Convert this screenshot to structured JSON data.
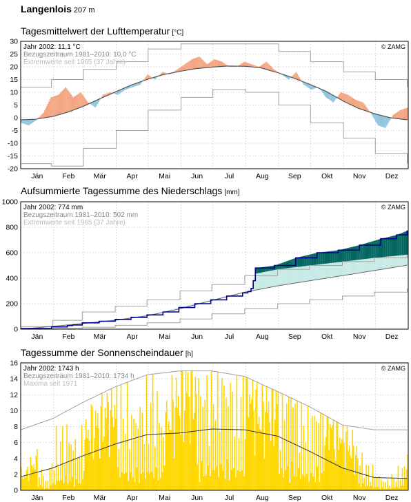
{
  "station": {
    "name": "Langenlois",
    "elevation": "207 m"
  },
  "copyright": "© ZAMG",
  "months": [
    "Jän",
    "Feb",
    "Mär",
    "Apr",
    "Mai",
    "Jun",
    "Jul",
    "Aug",
    "Sep",
    "Okt",
    "Nov",
    "Dez"
  ],
  "colors": {
    "temp_warm": "#f4a582",
    "temp_record_warm": "#b2182b",
    "temp_cold": "#92c5de",
    "temp_record_cold": "#2166ac",
    "temp_mean": "#555555",
    "extreme": "#a0a0a0",
    "precip_year": "#00008b",
    "precip_surplus": "#00665e",
    "precip_deficit": "#c7eae5",
    "sun_bar": "#ffd700",
    "sun_mean": "#333333",
    "sun_max": "#a0a0a0",
    "grid": "#d3d3d3",
    "frame": "#000000",
    "legend_grey": "#888888",
    "legend_light": "#bbbbbb"
  },
  "charts": [
    {
      "id": "temperature",
      "title": "Tagesmittelwert der Lufttemperatur",
      "unit": "[°C]",
      "legend": [
        "Jahr 2002: 11,1 °C",
        "Bezugszeitraum 1981–2010: 10,0 °C",
        "Extremwerte seit 1965 (37 Jahre)"
      ],
      "yticks": [
        "30",
        "25",
        "20",
        "15",
        "10",
        "5",
        "0",
        "-5",
        "-10",
        "-15",
        "-20"
      ]
    },
    {
      "id": "precipitation",
      "title": "Aufsummierte Tagessumme des Niederschlags",
      "unit": "[mm]",
      "legend": [
        "Jahr 2002: 774 mm",
        "Bezugszeitraum 1981–2010: 502 mm",
        "Extremwerte seit 1965 (37 Jahre)"
      ],
      "yticks": [
        "1000",
        "800",
        "600",
        "400",
        "200",
        "0"
      ]
    },
    {
      "id": "sunshine",
      "title": "Tagessumme der Sonnenscheindauer",
      "unit": "[h]",
      "legend": [
        "Jahr 2002: 1743 h",
        "Bezugszeitraum 1981–2010: 1734 h",
        "Maxima seit 1971"
      ],
      "yticks": [
        "16",
        "14",
        "12",
        "10",
        "8",
        "6",
        "4",
        "2",
        "0"
      ]
    }
  ],
  "chart_data": [
    {
      "type": "area",
      "title": "Tagesmittelwert der Lufttemperatur",
      "ylabel": "[°C]",
      "ylim": [
        -20,
        30
      ],
      "x_unit": "day of year 2002",
      "grid": true,
      "legend_position": "top-left",
      "annual_mean_2002": 11.1,
      "annual_mean_1981_2010": 10.0,
      "series": [
        {
          "name": "Bezugszeitraum 1981–2010",
          "x": [
            1,
            15,
            32,
            46,
            60,
            74,
            91,
            105,
            121,
            135,
            152,
            166,
            182,
            196,
            213,
            227,
            244,
            258,
            274,
            288,
            305,
            319,
            335,
            349,
            365
          ],
          "values": [
            -0.8,
            -0.6,
            0.6,
            2.3,
            4.5,
            7.2,
            10.3,
            12.8,
            15.2,
            16.9,
            18.3,
            19.3,
            19.9,
            20.3,
            20.2,
            19.6,
            17.6,
            15.6,
            13.0,
            10.5,
            6.5,
            3.7,
            1.5,
            0.0,
            -0.8
          ]
        },
        {
          "name": "Jahr 2002",
          "x": [
            1,
            8,
            15,
            22,
            29,
            36,
            43,
            50,
            57,
            64,
            71,
            78,
            85,
            92,
            99,
            106,
            113,
            120,
            127,
            134,
            141,
            148,
            155,
            162,
            169,
            176,
            183,
            190,
            197,
            204,
            211,
            218,
            225,
            232,
            239,
            246,
            253,
            260,
            267,
            274,
            281,
            288,
            295,
            302,
            309,
            316,
            323,
            330,
            337,
            344,
            351,
            358,
            365
          ],
          "values": [
            -2,
            -3,
            -1,
            2,
            8,
            9,
            12,
            8,
            10,
            6,
            4,
            9,
            10,
            9,
            11,
            12,
            13,
            17,
            15,
            18,
            17,
            19,
            21,
            23,
            24,
            21,
            23,
            22,
            20,
            20,
            22,
            21,
            20,
            22,
            19,
            17,
            15,
            18,
            13,
            11,
            12,
            8,
            6,
            10,
            9,
            7,
            6,
            2,
            -3,
            -4,
            1,
            3,
            4
          ]
        },
        {
          "name": "Extremwerte seit 1965 (Maximum)",
          "x": [
            1,
            30,
            60,
            91,
            121,
            152,
            182,
            213,
            244,
            274,
            305,
            335,
            365
          ],
          "values": [
            12,
            15,
            19,
            22,
            27,
            29,
            29,
            29,
            26,
            22,
            18,
            15,
            12
          ]
        },
        {
          "name": "Extremwerte seit 1965 (Minimum)",
          "x": [
            1,
            30,
            60,
            91,
            121,
            152,
            182,
            213,
            244,
            274,
            305,
            335,
            365
          ],
          "values": [
            -18,
            -19,
            -12,
            -5,
            3,
            8,
            11,
            10,
            5,
            -2,
            -8,
            -14,
            -18
          ]
        }
      ]
    },
    {
      "type": "line",
      "title": "Aufsummierte Tagessumme des Niederschlags",
      "ylabel": "[mm]",
      "ylim": [
        0,
        1000
      ],
      "x_unit": "day of year 2002",
      "grid": true,
      "legend_position": "top-left",
      "total_2002": 774,
      "total_1981_2010": 502,
      "series": [
        {
          "name": "Jahr 2002",
          "x": [
            1,
            30,
            45,
            50,
            59,
            75,
            90,
            105,
            120,
            135,
            150,
            165,
            180,
            195,
            210,
            215,
            218,
            220,
            222,
            240,
            260,
            280,
            300,
            320,
            340,
            355,
            365
          ],
          "values": [
            5,
            18,
            28,
            33,
            50,
            62,
            77,
            93,
            112,
            135,
            170,
            200,
            230,
            260,
            285,
            295,
            320,
            380,
            480,
            500,
            560,
            600,
            620,
            660,
            710,
            740,
            774
          ]
        },
        {
          "name": "Bezugszeitraum 1981–2010",
          "x": [
            1,
            31,
            59,
            90,
            120,
            151,
            181,
            212,
            243,
            273,
            304,
            334,
            365
          ],
          "values": [
            0,
            22,
            44,
            70,
            105,
            160,
            225,
            290,
            340,
            380,
            420,
            460,
            502
          ]
        },
        {
          "name": "Extremwerte seit 1965 (Maximum)",
          "x": [
            1,
            31,
            59,
            90,
            120,
            151,
            181,
            212,
            243,
            273,
            304,
            334,
            365
          ],
          "values": [
            20,
            70,
            135,
            180,
            230,
            300,
            350,
            420,
            470,
            500,
            530,
            560,
            585
          ]
        },
        {
          "name": "Extremwerte seit 1965 (Minimum)",
          "x": [
            1,
            31,
            59,
            90,
            120,
            151,
            181,
            212,
            243,
            273,
            304,
            334,
            365
          ],
          "values": [
            0,
            8,
            15,
            30,
            50,
            80,
            120,
            160,
            200,
            230,
            260,
            290,
            320
          ]
        }
      ]
    },
    {
      "type": "bar",
      "title": "Tagessumme der Sonnenscheindauer",
      "ylabel": "[h]",
      "ylim": [
        0,
        16
      ],
      "x_unit": "day of year 2002",
      "grid": true,
      "legend_position": "top-left",
      "total_2002": 1743,
      "total_1981_2010": 1734,
      "series": [
        {
          "name": "Jahr 2002",
          "x": [
            5,
            15,
            25,
            35,
            45,
            55,
            65,
            75,
            85,
            95,
            105,
            115,
            125,
            135,
            145,
            155,
            165,
            175,
            185,
            195,
            205,
            215,
            225,
            235,
            245,
            255,
            265,
            275,
            285,
            295,
            305,
            315,
            325,
            335,
            345,
            355,
            362
          ],
          "values": [
            2,
            4,
            1,
            6,
            7,
            5,
            8,
            9,
            11,
            12,
            9,
            10,
            12,
            8,
            11,
            13,
            14,
            12,
            14,
            13,
            12,
            14,
            10,
            11,
            12,
            13,
            10,
            9,
            11,
            8,
            7,
            5,
            3,
            2,
            1,
            2,
            3
          ]
        },
        {
          "name": "Bezugszeitraum 1981–2010",
          "x": [
            1,
            31,
            59,
            90,
            120,
            151,
            181,
            212,
            243,
            273,
            304,
            334,
            365
          ],
          "values": [
            1.7,
            2.8,
            4.3,
            5.8,
            7.0,
            7.2,
            7.7,
            7.6,
            6.8,
            4.9,
            2.8,
            1.6,
            1.5
          ]
        },
        {
          "name": "Maxima seit 1971",
          "x": [
            1,
            31,
            59,
            90,
            120,
            151,
            181,
            212,
            243,
            273,
            304,
            334,
            365
          ],
          "values": [
            7.6,
            9.0,
            11.0,
            13.0,
            14.5,
            15.0,
            15.0,
            14.3,
            12.4,
            10.5,
            8.2,
            7.6,
            7.6
          ]
        }
      ]
    }
  ]
}
